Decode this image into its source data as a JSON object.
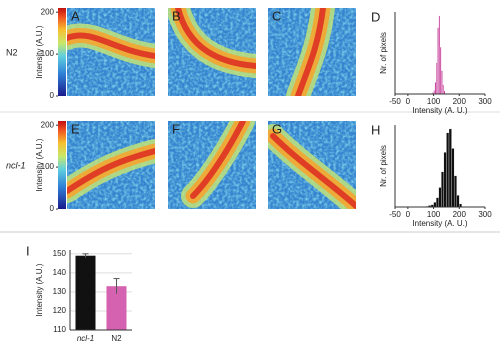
{
  "rows": [
    {
      "label": "N2",
      "colorbar": {
        "label": "Intensity (A.U.)",
        "lim": [
          0,
          210
        ],
        "ticks": [
          0,
          100,
          200
        ]
      },
      "panels": [
        "A",
        "B",
        "C"
      ]
    },
    {
      "label": "ncl-1",
      "colorbar": {
        "label": "Intensity (A.U.)",
        "lim": [
          0,
          210
        ],
        "ticks": [
          0,
          100,
          200
        ]
      },
      "panels": [
        "E",
        "F",
        "G"
      ]
    }
  ],
  "chart_data": [
    {
      "type": "histogram",
      "letter": "D",
      "xlabel": "Intensity (A. U.)",
      "ylabel": "Nr. of pixels",
      "color": "#c9479e",
      "bins": [
        95,
        100,
        105,
        110,
        115,
        120,
        125,
        130,
        135,
        140,
        145,
        150
      ],
      "values": [
        2,
        5,
        15,
        40,
        85,
        100,
        60,
        30,
        12,
        4,
        1
      ],
      "xlim": [
        -50,
        300
      ],
      "xticks": [
        -50,
        0,
        100,
        200,
        300
      ],
      "ylim": [
        0,
        105
      ]
    },
    {
      "type": "histogram",
      "letter": "H",
      "xlabel": "Intensity (A. U.)",
      "ylabel": "Nr. of pixels",
      "color": "#111111",
      "bins": [
        70,
        80,
        90,
        100,
        110,
        120,
        130,
        140,
        150,
        160,
        170,
        180,
        190,
        200,
        210
      ],
      "values": [
        1,
        2,
        3,
        6,
        12,
        25,
        45,
        70,
        95,
        100,
        75,
        40,
        15,
        4
      ],
      "xlim": [
        -50,
        300
      ],
      "xticks": [
        -50,
        0,
        100,
        200,
        300
      ],
      "ylim": [
        0,
        105
      ]
    },
    {
      "type": "bar",
      "letter": "I",
      "ylabel": "Intensity (A.U.)",
      "categories": [
        "ncl-1",
        "N2"
      ],
      "values": [
        149,
        133
      ],
      "errors": [
        1,
        4
      ],
      "colors": [
        "#111111",
        "#d462b0"
      ],
      "ylim": [
        110,
        152
      ],
      "yticks": [
        110,
        120,
        130,
        140,
        150
      ],
      "grid": true
    }
  ]
}
